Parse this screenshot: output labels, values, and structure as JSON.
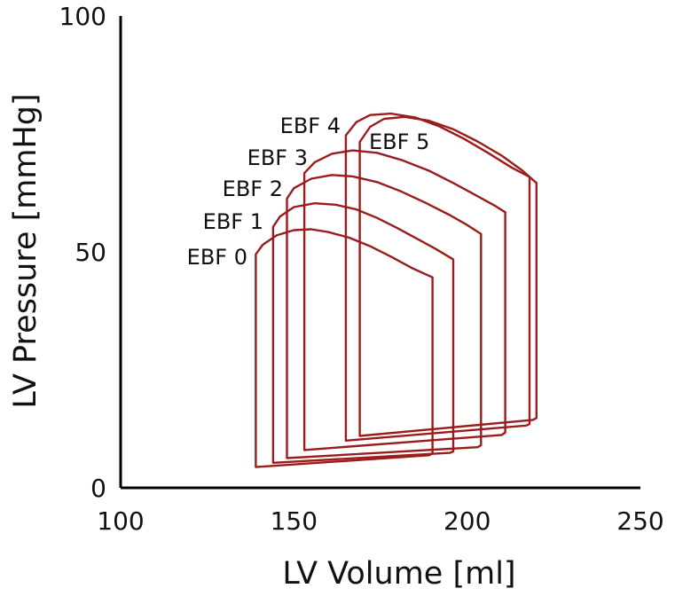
{
  "chart_data": {
    "type": "line",
    "title": "",
    "xlabel": "LV Volume [ml]",
    "ylabel": "LV Pressure [mmHg]",
    "xlim": [
      100,
      250
    ],
    "ylim": [
      0,
      100
    ],
    "x_ticks": [
      "100",
      "150",
      "200",
      "250"
    ],
    "y_ticks": [
      "0",
      "50",
      "100"
    ],
    "grid": false,
    "legend": "none",
    "line_color": "#9b1c1c",
    "series": [
      {
        "name": "EBF 0",
        "x": [
          139,
          141,
          145,
          150,
          155,
          160,
          166,
          172,
          178,
          184,
          190,
          190,
          189,
          139
        ],
        "y": [
          49.5,
          51.5,
          53.5,
          54.6,
          54.8,
          54.2,
          53.0,
          51.2,
          49.0,
          46.6,
          44.6,
          7.3,
          6.9,
          4.4
        ]
      },
      {
        "name": "EBF 1",
        "x": [
          144,
          146,
          150,
          156,
          162,
          168,
          174,
          180,
          186,
          191,
          196,
          196,
          195,
          144
        ],
        "y": [
          55.3,
          57.5,
          59.5,
          60.3,
          60.0,
          59.0,
          57.2,
          55.0,
          52.6,
          50.6,
          48.4,
          7.7,
          7.4,
          5.3
        ]
      },
      {
        "name": "EBF 2",
        "x": [
          148,
          150,
          155,
          161,
          167,
          174,
          181,
          188,
          195,
          200,
          204,
          204,
          203,
          148
        ],
        "y": [
          61.3,
          63.5,
          65.5,
          66.3,
          66.0,
          64.8,
          62.8,
          60.4,
          57.8,
          55.7,
          53.8,
          9.0,
          8.6,
          6.3
        ]
      },
      {
        "name": "EBF 3",
        "x": [
          153,
          156,
          161,
          167,
          174,
          181,
          189,
          196,
          203,
          208,
          211,
          211,
          210,
          153
        ],
        "y": [
          66.7,
          69.0,
          70.8,
          71.5,
          71.0,
          69.5,
          67.2,
          64.6,
          61.8,
          59.8,
          58.4,
          11.7,
          11.2,
          8.0
        ]
      },
      {
        "name": "EBF 4",
        "x": [
          165,
          168,
          172,
          178,
          185,
          192,
          199,
          206,
          213,
          218,
          218,
          217,
          165
        ],
        "y": [
          74.7,
          77.5,
          79.0,
          79.3,
          78.5,
          76.6,
          74.0,
          71.0,
          67.8,
          65.9,
          13.5,
          13.2,
          10.0
        ]
      },
      {
        "name": "EBF 5",
        "x": [
          169,
          172,
          176,
          182,
          189,
          196,
          203,
          210,
          216,
          220,
          220,
          219,
          169
        ],
        "y": [
          73.3,
          76.5,
          78.2,
          78.6,
          77.8,
          76.0,
          73.4,
          70.4,
          67.2,
          64.6,
          14.8,
          14.4,
          11.0
        ]
      }
    ],
    "annotations": [
      {
        "text": "EBF 0",
        "series": 0
      },
      {
        "text": "EBF 1",
        "series": 1
      },
      {
        "text": "EBF 2",
        "series": 2
      },
      {
        "text": "EBF 3",
        "series": 3
      },
      {
        "text": "EBF 4",
        "series": 4
      },
      {
        "text": "EBF 5",
        "series": 5
      }
    ]
  }
}
